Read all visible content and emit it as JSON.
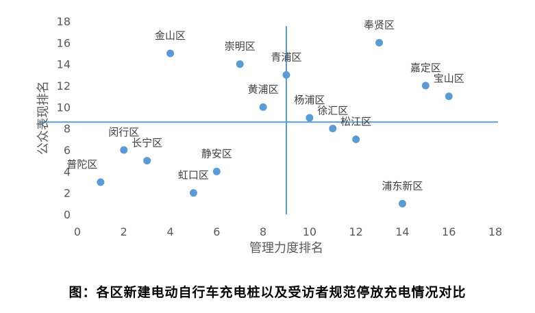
{
  "chart_data": {
    "type": "scatter",
    "xlabel": "管理力度排名",
    "ylabel": "公众表现排名",
    "xlim": [
      0,
      18
    ],
    "ylim": [
      0,
      18
    ],
    "x_ticks": [
      "0",
      "2",
      "4",
      "6",
      "8",
      "10",
      "12",
      "14",
      "16",
      "18"
    ],
    "y_ticks": [
      "0",
      "2",
      "4",
      "6",
      "8",
      "10",
      "12",
      "14",
      "16",
      "18"
    ],
    "grid": false,
    "point_color": "#5b9bd5",
    "reference_lines": {
      "x": 9,
      "y": 8.6,
      "color": "#5b9bd5"
    },
    "points": [
      {
        "label": "普陀区",
        "x": 1,
        "y": 3
      },
      {
        "label": "闵行区",
        "x": 2,
        "y": 6
      },
      {
        "label": "长宁区",
        "x": 3,
        "y": 5
      },
      {
        "label": "金山区",
        "x": 4,
        "y": 15
      },
      {
        "label": "虹口区",
        "x": 5,
        "y": 2
      },
      {
        "label": "静安区",
        "x": 6,
        "y": 4
      },
      {
        "label": "崇明区",
        "x": 7,
        "y": 14
      },
      {
        "label": "黄浦区",
        "x": 8,
        "y": 10
      },
      {
        "label": "青浦区",
        "x": 9,
        "y": 13
      },
      {
        "label": "杨浦区",
        "x": 10,
        "y": 9
      },
      {
        "label": "徐汇区",
        "x": 11,
        "y": 8
      },
      {
        "label": "松江区",
        "x": 12,
        "y": 7
      },
      {
        "label": "奉贤区",
        "x": 13,
        "y": 16
      },
      {
        "label": "浦东新区",
        "x": 14,
        "y": 1
      },
      {
        "label": "嘉定区",
        "x": 15,
        "y": 12
      },
      {
        "label": "宝山区",
        "x": 16,
        "y": 11
      }
    ]
  },
  "caption": "图：各区新建电动自行车充电桩以及受访者规范停放充电情况对比"
}
